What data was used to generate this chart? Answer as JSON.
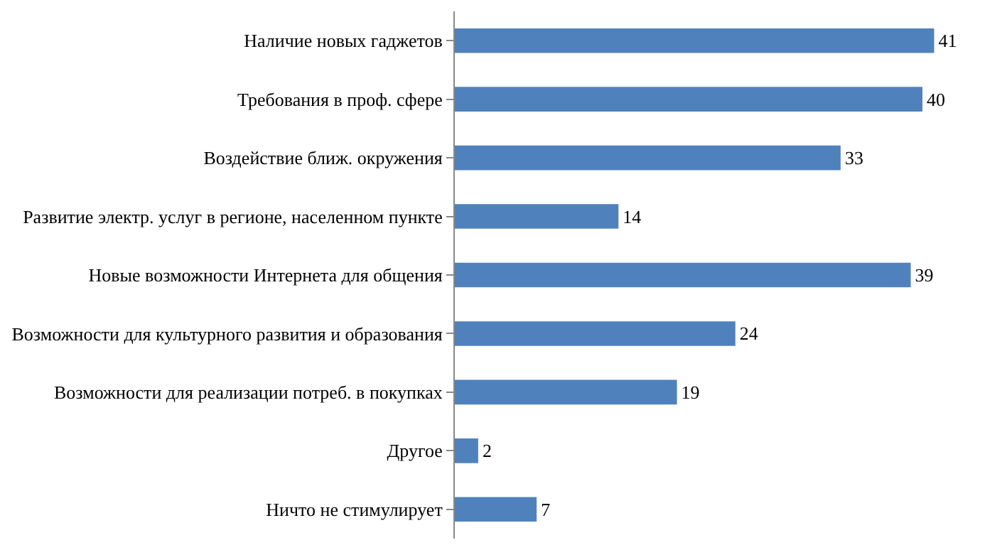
{
  "chart_data": {
    "type": "bar",
    "orientation": "horizontal",
    "categories": [
      "Наличие новых гаджетов",
      "Требования в проф. сфере",
      "Воздействие ближ. окружения",
      "Развитие электр. услуг в регионе, населенном пункте",
      "Новые возможности Интернета для общения",
      "Возможности для культурного развития и образования",
      "Возможности для реализации потреб. в покупках",
      "Другое",
      "Ничто не стимулирует"
    ],
    "values": [
      41,
      40,
      33,
      14,
      39,
      24,
      19,
      2,
      7
    ],
    "color": "#4f81bd",
    "data_labels": true
  }
}
